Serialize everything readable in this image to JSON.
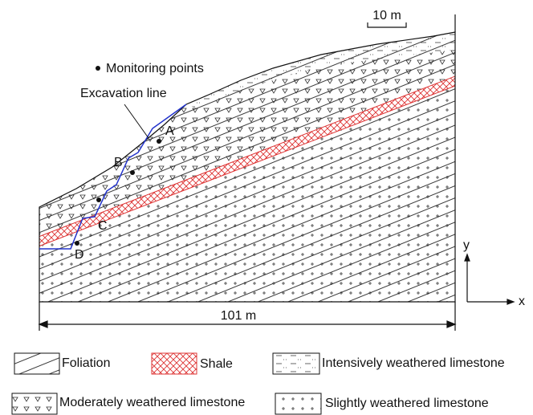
{
  "scale_bar": "10 m",
  "annotations": {
    "monitoring_points": "Monitoring points",
    "excavation_line": "Excavation line"
  },
  "points": [
    {
      "label": "A"
    },
    {
      "label": "B"
    },
    {
      "label": "C"
    },
    {
      "label": "D"
    }
  ],
  "axes": {
    "y": "y",
    "x": "x"
  },
  "width_label": "101 m",
  "legend": [
    "Foliation",
    "Shale",
    "Intensively weathered limestone",
    "Moderately weathered limestone",
    "Slightly weathered limestone"
  ]
}
